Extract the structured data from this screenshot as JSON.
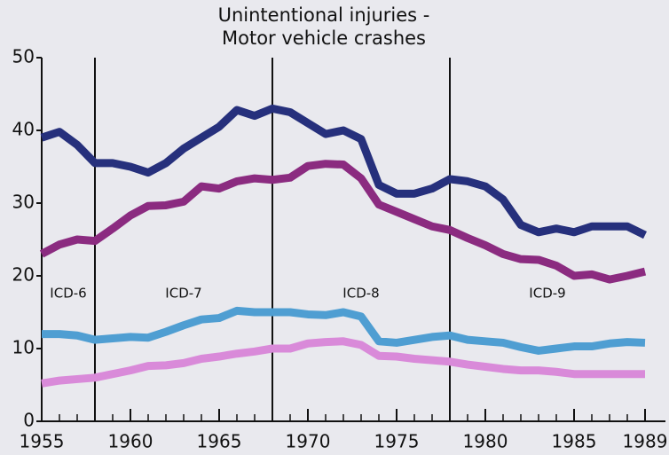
{
  "chart_data": {
    "type": "line",
    "title": "Unintentional injuries - Motor vehicle crashes",
    "x": [
      1955,
      1956,
      1957,
      1958,
      1959,
      1960,
      1961,
      1962,
      1963,
      1964,
      1965,
      1966,
      1967,
      1968,
      1969,
      1970,
      1971,
      1972,
      1973,
      1974,
      1975,
      1976,
      1977,
      1978,
      1979,
      1980,
      1981,
      1982,
      1983,
      1984,
      1985,
      1986,
      1987,
      1988,
      1989
    ],
    "series": [
      {
        "color": "#26307c",
        "values": [
          39,
          39.8,
          38,
          35.5,
          35.5,
          35,
          34.2,
          35.5,
          37.5,
          39,
          40.5,
          42.8,
          42,
          43,
          42.5,
          41,
          39.5,
          40,
          38.8,
          32.5,
          31.3,
          31.3,
          32,
          33.3,
          33,
          32.3,
          30.5,
          27,
          26,
          26.5,
          26,
          26.8,
          26.8,
          26.8,
          25.6
        ]
      },
      {
        "color": "#8b2b80",
        "values": [
          23,
          24.3,
          25,
          24.8,
          26.5,
          28.3,
          29.6,
          29.7,
          30.2,
          32.3,
          32,
          33,
          33.4,
          33.2,
          33.5,
          35.1,
          35.4,
          35.3,
          33.4,
          29.8,
          28.8,
          27.8,
          26.8,
          26.3,
          25.2,
          24.2,
          23,
          22.3,
          22.2,
          21.4,
          20,
          20.2,
          19.5,
          20,
          20.6
        ]
      },
      {
        "color": "#4f9ed2",
        "values": [
          12,
          12,
          11.8,
          11.2,
          11.4,
          11.6,
          11.5,
          12.3,
          13.2,
          14,
          14.2,
          15.2,
          15,
          15,
          15,
          14.7,
          14.6,
          15,
          14.4,
          11,
          10.8,
          11.2,
          11.6,
          11.8,
          11.2,
          11,
          10.8,
          10.2,
          9.7,
          10,
          10.3,
          10.3,
          10.7,
          10.9,
          10.8
        ]
      },
      {
        "color": "#d98ad9",
        "values": [
          5.2,
          5.6,
          5.8,
          6,
          6.5,
          7,
          7.6,
          7.7,
          8,
          8.6,
          8.9,
          9.3,
          9.6,
          10,
          10,
          10.7,
          10.9,
          11,
          10.5,
          9,
          8.9,
          8.6,
          8.4,
          8.2,
          7.8,
          7.5,
          7.2,
          7,
          7,
          6.8,
          6.5,
          6.5,
          6.5,
          6.5,
          6.5
        ]
      }
    ],
    "xlim": [
      1955,
      1989
    ],
    "xticks": [
      1955,
      1960,
      1965,
      1970,
      1975,
      1980,
      1985,
      1989
    ],
    "ylim": [
      0,
      50
    ],
    "yticks": [
      0,
      10,
      20,
      30,
      40,
      50
    ],
    "dividers": [
      1958,
      1968,
      1978
    ],
    "annotations": [
      "ICD-6",
      "ICD-7",
      "ICD-8",
      "ICD-9"
    ]
  }
}
